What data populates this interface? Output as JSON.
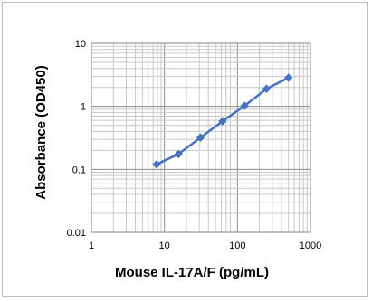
{
  "chart_data": {
    "type": "line",
    "xlabel": "Mouse IL-17A/F  (pg/mL)",
    "ylabel": "Absorbance (OD450)",
    "x_scale": "log",
    "y_scale": "log",
    "xlim": [
      1,
      1000
    ],
    "ylim": [
      0.01,
      10
    ],
    "x_ticks": [
      "1",
      "10",
      "100",
      "1000"
    ],
    "y_ticks": [
      "0.01",
      "0.1",
      "1",
      "10"
    ],
    "grid": true,
    "minor_grid": true,
    "marker": "diamond",
    "series": [
      {
        "color": "#4472c4",
        "x": [
          7.8,
          15.6,
          31.25,
          62.5,
          125,
          250,
          500
        ],
        "y": [
          0.12,
          0.175,
          0.32,
          0.58,
          1.02,
          1.9,
          2.85
        ]
      }
    ]
  }
}
